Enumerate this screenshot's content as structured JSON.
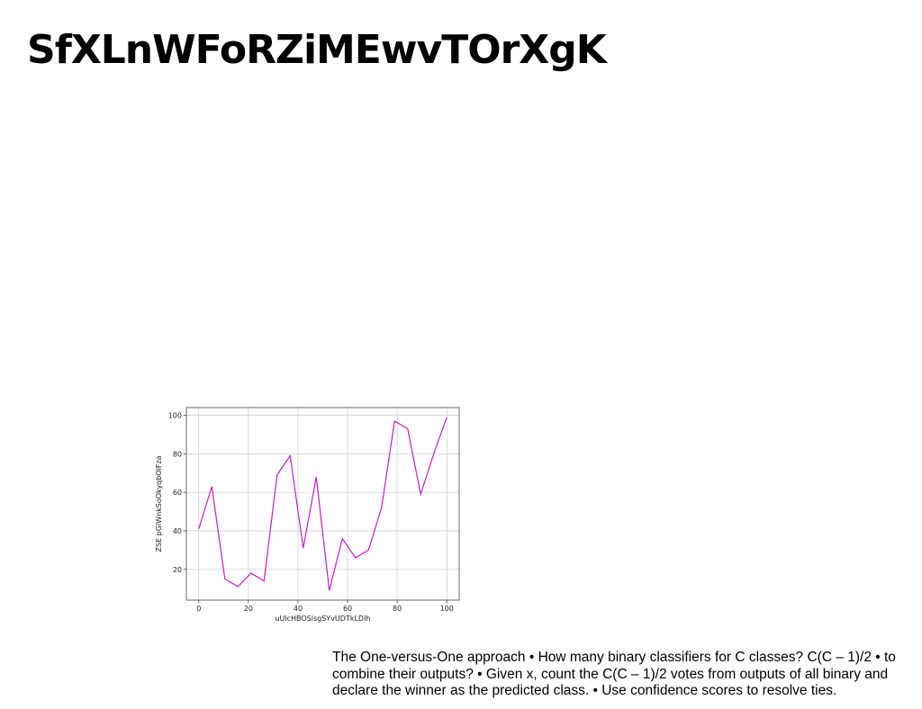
{
  "slide": {
    "title": "SfXLnWFoRZiMEwvTOrXgK",
    "caption": "The One-versus-One approach • How many binary classifiers for C classes? C(C – 1)/2 • to combine their outputs? • Given x, count the C(C – 1)/2 votes from outputs of all binary and declare the winner as the predicted class. • Use confidence scores to resolve ties."
  },
  "chart_data": {
    "type": "line",
    "title": "",
    "xlabel": "uUlcHBOSlsgSYvUDTkLDIh",
    "ylabel": "ZSE pGlWnkSoOkyqbOlFza",
    "xlim": [
      -5,
      105
    ],
    "ylim": [
      4,
      104
    ],
    "xticks": [
      0,
      20,
      40,
      60,
      80,
      100
    ],
    "yticks": [
      20,
      40,
      60,
      80,
      100
    ],
    "grid": true,
    "colors": {
      "line": "#c51bc5",
      "grid": "#cfcfcf",
      "axis": "#444444"
    },
    "series": [
      {
        "x": [
          0,
          5.26,
          10.53,
          15.79,
          21.05,
          26.32,
          31.58,
          36.84,
          42.11,
          47.37,
          52.63,
          57.89,
          63.16,
          68.42,
          73.68,
          78.95,
          84.21,
          89.47,
          94.74,
          100
        ],
        "y": [
          41,
          63,
          15,
          11,
          18,
          14,
          69,
          79,
          31,
          68,
          9,
          36,
          26,
          30,
          52,
          97,
          93,
          59,
          80,
          99
        ]
      }
    ]
  }
}
